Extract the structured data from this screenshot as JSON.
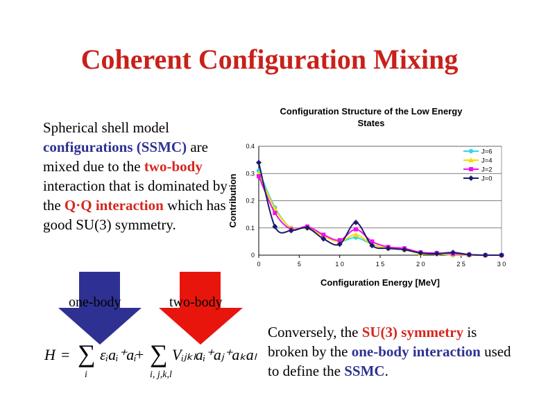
{
  "title": "Coherent Configuration Mixing",
  "left_text": {
    "t1": "Spherical shell model ",
    "t2": "configurations (SSMC)",
    "t3": " are mixed due to the ",
    "t4": "two-body",
    "t5": " interaction that is dominated by the ",
    "t6": "Q·Q interaction",
    "t7": " which has good SU(3) symmetry."
  },
  "arrows": {
    "one_body_label": "one-body",
    "two_body_label": "two-body",
    "one_body_color": "#2e3192",
    "two_body_color": "#e8150d"
  },
  "equation": {
    "H": "H",
    "eq": "=",
    "sum": "∑",
    "term1": "εᵢaᵢ⁺aᵢ",
    "plus": "+",
    "term2": "Vᵢⱼₖₗaᵢ⁺aⱼ⁺aₖaₗ",
    "sub1": "i",
    "sub2": "i, j,k,l"
  },
  "bottom_text": {
    "t1": "Conversely, the ",
    "t2": "SU(3) symmetry",
    "t3": " is broken by the ",
    "t4": "one-body interaction",
    "t5": " used to define the ",
    "t6": "SSMC",
    "t7": "."
  },
  "chart_data": {
    "type": "line",
    "title": "Configuration Structure of the Low Energy States",
    "xlabel": "Configuration Energy [MeV]",
    "ylabel": "Contribution",
    "xlim": [
      0,
      30
    ],
    "ylim": [
      0,
      0.4
    ],
    "x_ticks": [
      "0",
      "5",
      "1 0",
      "1 5",
      "2 0",
      "2 5",
      "3 0"
    ],
    "y_ticks": [
      "0",
      "0.1",
      "0.2",
      "0.3",
      "0.4"
    ],
    "grid": "horizontal",
    "legend_position": "top-right",
    "x": [
      0,
      2,
      4,
      6,
      8,
      10,
      12,
      14,
      16,
      18,
      20,
      22,
      24,
      26,
      28,
      30
    ],
    "series": [
      {
        "name": "J=6",
        "color": "#33d6e6",
        "marker": "circle",
        "values": [
          0.31,
          0.175,
          0.1,
          0.1,
          0.07,
          0.05,
          0.065,
          0.04,
          0.025,
          0.02,
          0.005,
          0.005,
          0.0,
          0.0,
          0.0,
          0.0
        ]
      },
      {
        "name": "J=4",
        "color": "#f0e000",
        "marker": "triangle",
        "values": [
          0.3,
          0.17,
          0.1,
          0.1,
          0.07,
          0.05,
          0.075,
          0.04,
          0.025,
          0.02,
          0.005,
          0.005,
          0.002,
          0.0,
          0.0,
          0.0
        ]
      },
      {
        "name": "J=2",
        "color": "#ee10ee",
        "marker": "square",
        "values": [
          0.29,
          0.155,
          0.095,
          0.105,
          0.075,
          0.055,
          0.095,
          0.05,
          0.03,
          0.025,
          0.01,
          0.008,
          0.005,
          0.002,
          0.0,
          0.0
        ]
      },
      {
        "name": "J=0",
        "color": "#1b1a6e",
        "marker": "diamond",
        "values": [
          0.34,
          0.105,
          0.09,
          0.1,
          0.06,
          0.04,
          0.12,
          0.035,
          0.025,
          0.02,
          0.008,
          0.005,
          0.01,
          0.002,
          0.0,
          0.0
        ]
      }
    ]
  }
}
